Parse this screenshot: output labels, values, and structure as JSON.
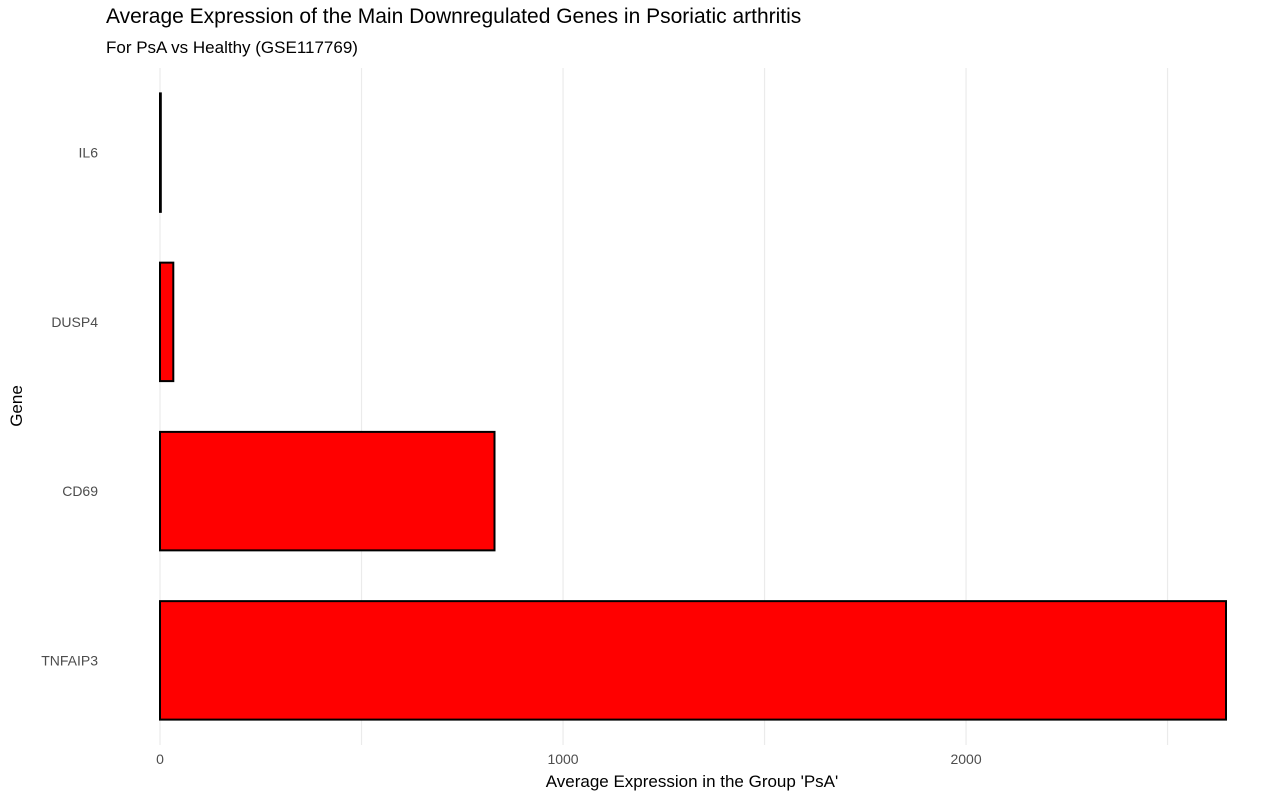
{
  "chart_data": {
    "type": "bar",
    "orientation": "horizontal",
    "title": "Average Expression of the Main Downregulated Genes in Psoriatic arthritis",
    "subtitle": "For PsA vs Healthy (GSE117769)",
    "xlabel": "Average Expression in the Group 'PsA'",
    "ylabel": "Gene",
    "categories": [
      "IL6",
      "DUSP4",
      "CD69",
      "TNFAIP3"
    ],
    "values": [
      2,
      33,
      830,
      2645
    ],
    "xlim": [
      0,
      2645
    ],
    "x_ticks": [
      0,
      1000,
      2000
    ],
    "x_tick_labels": [
      "0",
      "1000",
      "2000"
    ],
    "x_minor_ticks": [
      500,
      1500,
      2500
    ],
    "grid": true,
    "bar_color": "#ff0000",
    "bar_edge_color": "#000000",
    "grid_color": "#ebebeb"
  }
}
